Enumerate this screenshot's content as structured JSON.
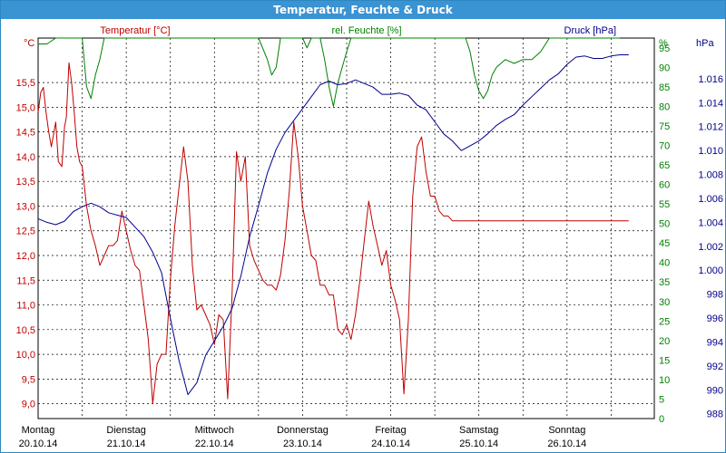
{
  "window": {
    "title": "Temperatur, Feuchte & Druck"
  },
  "colors": {
    "temperature": "#c00000",
    "humidity": "#008000",
    "pressure": "#00008b",
    "title_bar": "#3a93d3"
  },
  "chart_data": {
    "type": "line",
    "title": "Temperatur, Feuchte & Druck",
    "grid": true,
    "x_day_labels": [
      {
        "day": "Montag",
        "date": "20.10.14"
      },
      {
        "day": "Dienstag",
        "date": "21.10.14"
      },
      {
        "day": "Mittwoch",
        "date": "22.10.14"
      },
      {
        "day": "Donnerstag",
        "date": "23.10.14"
      },
      {
        "day": "Freitag",
        "date": "24.10.14"
      },
      {
        "day": "Samstag",
        "date": "25.10.14"
      },
      {
        "day": "Sonntag",
        "date": "26.10.14"
      }
    ],
    "axes": {
      "temperature": {
        "label": "Temperatur [°C]",
        "unit": "°C",
        "position": "left",
        "ylim": [
          8.7,
          16.4
        ],
        "ticks": [
          "9,0",
          "9,5",
          "10,0",
          "10,5",
          "11,0",
          "11,5",
          "12,0",
          "12,5",
          "13,0",
          "13,5",
          "14,0",
          "14,5",
          "15,0",
          "15,5"
        ]
      },
      "humidity": {
        "label": "rel. Feuchte [%]",
        "unit": "%",
        "position": "right-inner",
        "ylim": [
          0,
          97.5
        ],
        "ticks": [
          "0",
          "5",
          "10",
          "15",
          "20",
          "25",
          "30",
          "35",
          "40",
          "45",
          "50",
          "55",
          "60",
          "65",
          "70",
          "75",
          "80",
          "85",
          "90",
          "95"
        ]
      },
      "pressure": {
        "label": "Druck [hPa]",
        "unit": "hPa",
        "position": "right-outer",
        "ylim": [
          987.6,
          1019.4
        ],
        "ticks": [
          "988",
          "990",
          "992",
          "994",
          "996",
          "998",
          "1.000",
          "1.002",
          "1.004",
          "1.006",
          "1.008",
          "1.010",
          "1.012",
          "1.014",
          "1.016"
        ]
      }
    },
    "series": [
      {
        "name": "Temperatur [°C]",
        "axis": "temperature",
        "color": "#c00000",
        "x": [
          0,
          0.03,
          0.06,
          0.09,
          0.12,
          0.15,
          0.18,
          0.2,
          0.23,
          0.27,
          0.3,
          0.32,
          0.35,
          0.38,
          0.41,
          0.44,
          0.47,
          0.5,
          0.55,
          0.6,
          0.65,
          0.7,
          0.75,
          0.8,
          0.85,
          0.9,
          0.95,
          1,
          1.05,
          1.1,
          1.15,
          1.2,
          1.25,
          1.3,
          1.35,
          1.4,
          1.45,
          1.5,
          1.55,
          1.6,
          1.65,
          1.7,
          1.75,
          1.8,
          1.85,
          1.9,
          1.95,
          2,
          2.05,
          2.1,
          2.15,
          2.2,
          2.25,
          2.3,
          2.35,
          2.4,
          2.45,
          2.5,
          2.55,
          2.6,
          2.65,
          2.7,
          2.75,
          2.8,
          2.85,
          2.9,
          2.95,
          3,
          3.05,
          3.1,
          3.15,
          3.2,
          3.25,
          3.3,
          3.35,
          3.4,
          3.45,
          3.5,
          3.55,
          3.6,
          3.65,
          3.7,
          3.75,
          3.8,
          3.85,
          3.9,
          3.95,
          4,
          4.05,
          4.1,
          4.15,
          4.2,
          4.25,
          4.3,
          4.35,
          4.4,
          4.45,
          4.5,
          4.55,
          4.6,
          4.65,
          4.7,
          4.75,
          4.8,
          4.85,
          4.9,
          4.95,
          5,
          5.05,
          5.1,
          5.15,
          5.2,
          5.25,
          5.3,
          5.35,
          5.4,
          5.45,
          5.5,
          5.55,
          5.6,
          5.65,
          5.7,
          5.75,
          5.8,
          5.85,
          5.9,
          5.95,
          6,
          6.05,
          6.1,
          6.15,
          6.2,
          6.25,
          6.3,
          6.35,
          6.4,
          6.45,
          6.5,
          6.55,
          6.6,
          6.65,
          6.7
        ],
        "values": [
          14.9,
          15.3,
          15.4,
          14.9,
          14.5,
          14.2,
          14.5,
          14.7,
          13.9,
          13.8,
          14.6,
          14.8,
          15.9,
          15.5,
          14.9,
          14.2,
          13.9,
          13.8,
          13.0,
          12.5,
          12.2,
          11.8,
          12.0,
          12.2,
          12.2,
          12.3,
          12.9,
          12.5,
          12.1,
          11.8,
          11.7,
          11.0,
          10.3,
          9.0,
          9.8,
          10.0,
          10.0,
          11.5,
          12.6,
          13.4,
          14.2,
          13.5,
          11.8,
          10.9,
          11.0,
          10.8,
          10.6,
          10.2,
          10.8,
          10.7,
          9.1,
          11.2,
          14.1,
          13.5,
          14.0,
          12.2,
          11.9,
          11.7,
          11.5,
          11.4,
          11.4,
          11.3,
          11.6,
          12.3,
          13.3,
          14.7,
          14.0,
          13.0,
          12.5,
          12.0,
          11.9,
          11.4,
          11.4,
          11.2,
          11.2,
          10.5,
          10.4,
          10.6,
          10.3,
          10.8,
          11.5,
          12.3,
          13.1,
          12.6,
          12.2,
          11.8,
          12.1,
          11.4,
          11.1,
          10.7,
          9.2,
          10.7,
          13.2,
          14.2,
          14.4,
          13.7,
          13.2,
          13.2,
          12.9,
          12.8,
          12.8,
          12.7,
          12.7,
          12.7,
          12.7,
          12.7,
          12.7,
          12.7,
          12.7,
          12.7,
          12.7,
          12.7,
          12.7,
          12.7,
          12.7,
          12.7,
          12.7,
          12.7,
          12.7,
          12.7,
          12.7,
          12.7,
          12.7,
          12.7,
          12.7,
          12.7,
          12.7,
          12.7,
          12.7,
          12.7,
          12.7,
          12.7,
          12.7,
          12.7,
          12.7,
          12.7,
          12.7,
          12.7,
          12.7,
          12.7,
          12.7,
          12.7
        ],
        "note": ""
      },
      {
        "name": "rel. Feuchte [%]",
        "axis": "humidity",
        "color": "#008000",
        "x": [
          0,
          0.1,
          0.2,
          0.3,
          0.35,
          0.4,
          0.45,
          0.5,
          0.55,
          0.6,
          0.65,
          0.7,
          0.75,
          0.8,
          0.9,
          1,
          1.1,
          1.2,
          1.3,
          1.4,
          1.5,
          1.6,
          1.7,
          1.8,
          1.9,
          2,
          2.1,
          2.2,
          2.3,
          2.4,
          2.5,
          2.6,
          2.65,
          2.7,
          2.75,
          2.8,
          2.85,
          2.9,
          3,
          3.05,
          3.1,
          3.15,
          3.2,
          3.25,
          3.3,
          3.35,
          3.4,
          3.45,
          3.5,
          3.55,
          3.6,
          3.65,
          3.7,
          3.75,
          3.8,
          3.85,
          3.9,
          4,
          4.1,
          4.2,
          4.3,
          4.4,
          4.45,
          4.5,
          4.55,
          4.6,
          4.65,
          4.7,
          4.75,
          4.8,
          4.85,
          4.9,
          4.95,
          5,
          5.05,
          5.1,
          5.15,
          5.2,
          5.3,
          5.4,
          5.5,
          5.6,
          5.7,
          5.8,
          5.9,
          6,
          6.05,
          6.1,
          6.15,
          6.2,
          6.25,
          6.3,
          6.35,
          6.4,
          6.45,
          6.5,
          6.55,
          6.6
        ],
        "values": [
          96,
          96,
          97.5,
          97.5,
          97.5,
          97.5,
          97.5,
          97.5,
          85,
          82,
          88,
          92,
          97.5,
          97.5,
          97.5,
          97.5,
          97.5,
          97.5,
          97.5,
          97.5,
          97.5,
          97.5,
          97.5,
          97.5,
          97.5,
          97.5,
          97.5,
          97.5,
          97.5,
          97.5,
          97.5,
          92,
          88,
          90,
          97.5,
          97.5,
          97.5,
          97.5,
          97.5,
          95,
          97.5,
          97.5,
          97.5,
          92,
          85,
          80,
          86,
          90,
          94,
          97.5,
          97.5,
          97.5,
          97.5,
          97.5,
          97.5,
          97.5,
          97.5,
          97.5,
          97.5,
          97.5,
          97.5,
          97.5,
          97.5,
          97.5,
          97.5,
          97.5,
          97.5,
          97.5,
          97.5,
          97.5,
          97.5,
          94,
          88,
          84,
          82,
          84,
          88,
          90,
          92,
          91,
          92,
          92,
          94,
          97.5,
          97.5,
          97.5,
          97.5,
          97.5,
          97.5,
          97.5,
          97.5,
          97.5,
          97.5,
          97.5,
          97.5,
          97.5,
          97.5,
          97.5
        ]
      },
      {
        "name": "Druck [hPa]",
        "axis": "pressure",
        "color": "#00008b",
        "x": [
          0,
          0.1,
          0.2,
          0.3,
          0.4,
          0.5,
          0.6,
          0.7,
          0.8,
          0.9,
          1,
          1.1,
          1.2,
          1.3,
          1.4,
          1.5,
          1.6,
          1.7,
          1.8,
          1.9,
          2,
          2.1,
          2.2,
          2.3,
          2.4,
          2.5,
          2.6,
          2.7,
          2.8,
          2.9,
          3,
          3.1,
          3.2,
          3.3,
          3.4,
          3.5,
          3.6,
          3.7,
          3.8,
          3.9,
          4,
          4.1,
          4.2,
          4.3,
          4.4,
          4.5,
          4.6,
          4.7,
          4.8,
          4.9,
          5,
          5.1,
          5.2,
          5.3,
          5.4,
          5.5,
          5.6,
          5.7,
          5.8,
          5.9,
          6,
          6.1,
          6.2,
          6.3,
          6.4,
          6.5,
          6.6,
          6.7
        ],
        "values": [
          1004.3,
          1004.0,
          1003.8,
          1004.1,
          1004.9,
          1005.3,
          1005.6,
          1005.3,
          1004.8,
          1004.6,
          1004.4,
          1003.6,
          1002.8,
          1001.5,
          999.8,
          996.0,
          992.4,
          989.6,
          990.6,
          992.9,
          994.1,
          995.3,
          996.8,
          999.5,
          1002.8,
          1005.4,
          1008.1,
          1010.1,
          1011.5,
          1012.5,
          1013.5,
          1014.5,
          1015.5,
          1015.8,
          1015.5,
          1015.6,
          1015.9,
          1015.6,
          1015.3,
          1014.7,
          1014.7,
          1014.8,
          1014.6,
          1013.8,
          1013.4,
          1012.4,
          1011.4,
          1010.8,
          1010.0,
          1010.4,
          1010.8,
          1011.4,
          1012.1,
          1012.6,
          1013.0,
          1013.8,
          1014.5,
          1015.2,
          1015.9,
          1016.4,
          1017.2,
          1017.8,
          1017.9,
          1017.7,
          1017.7,
          1017.9,
          1018.0,
          1018.0
        ]
      }
    ]
  }
}
